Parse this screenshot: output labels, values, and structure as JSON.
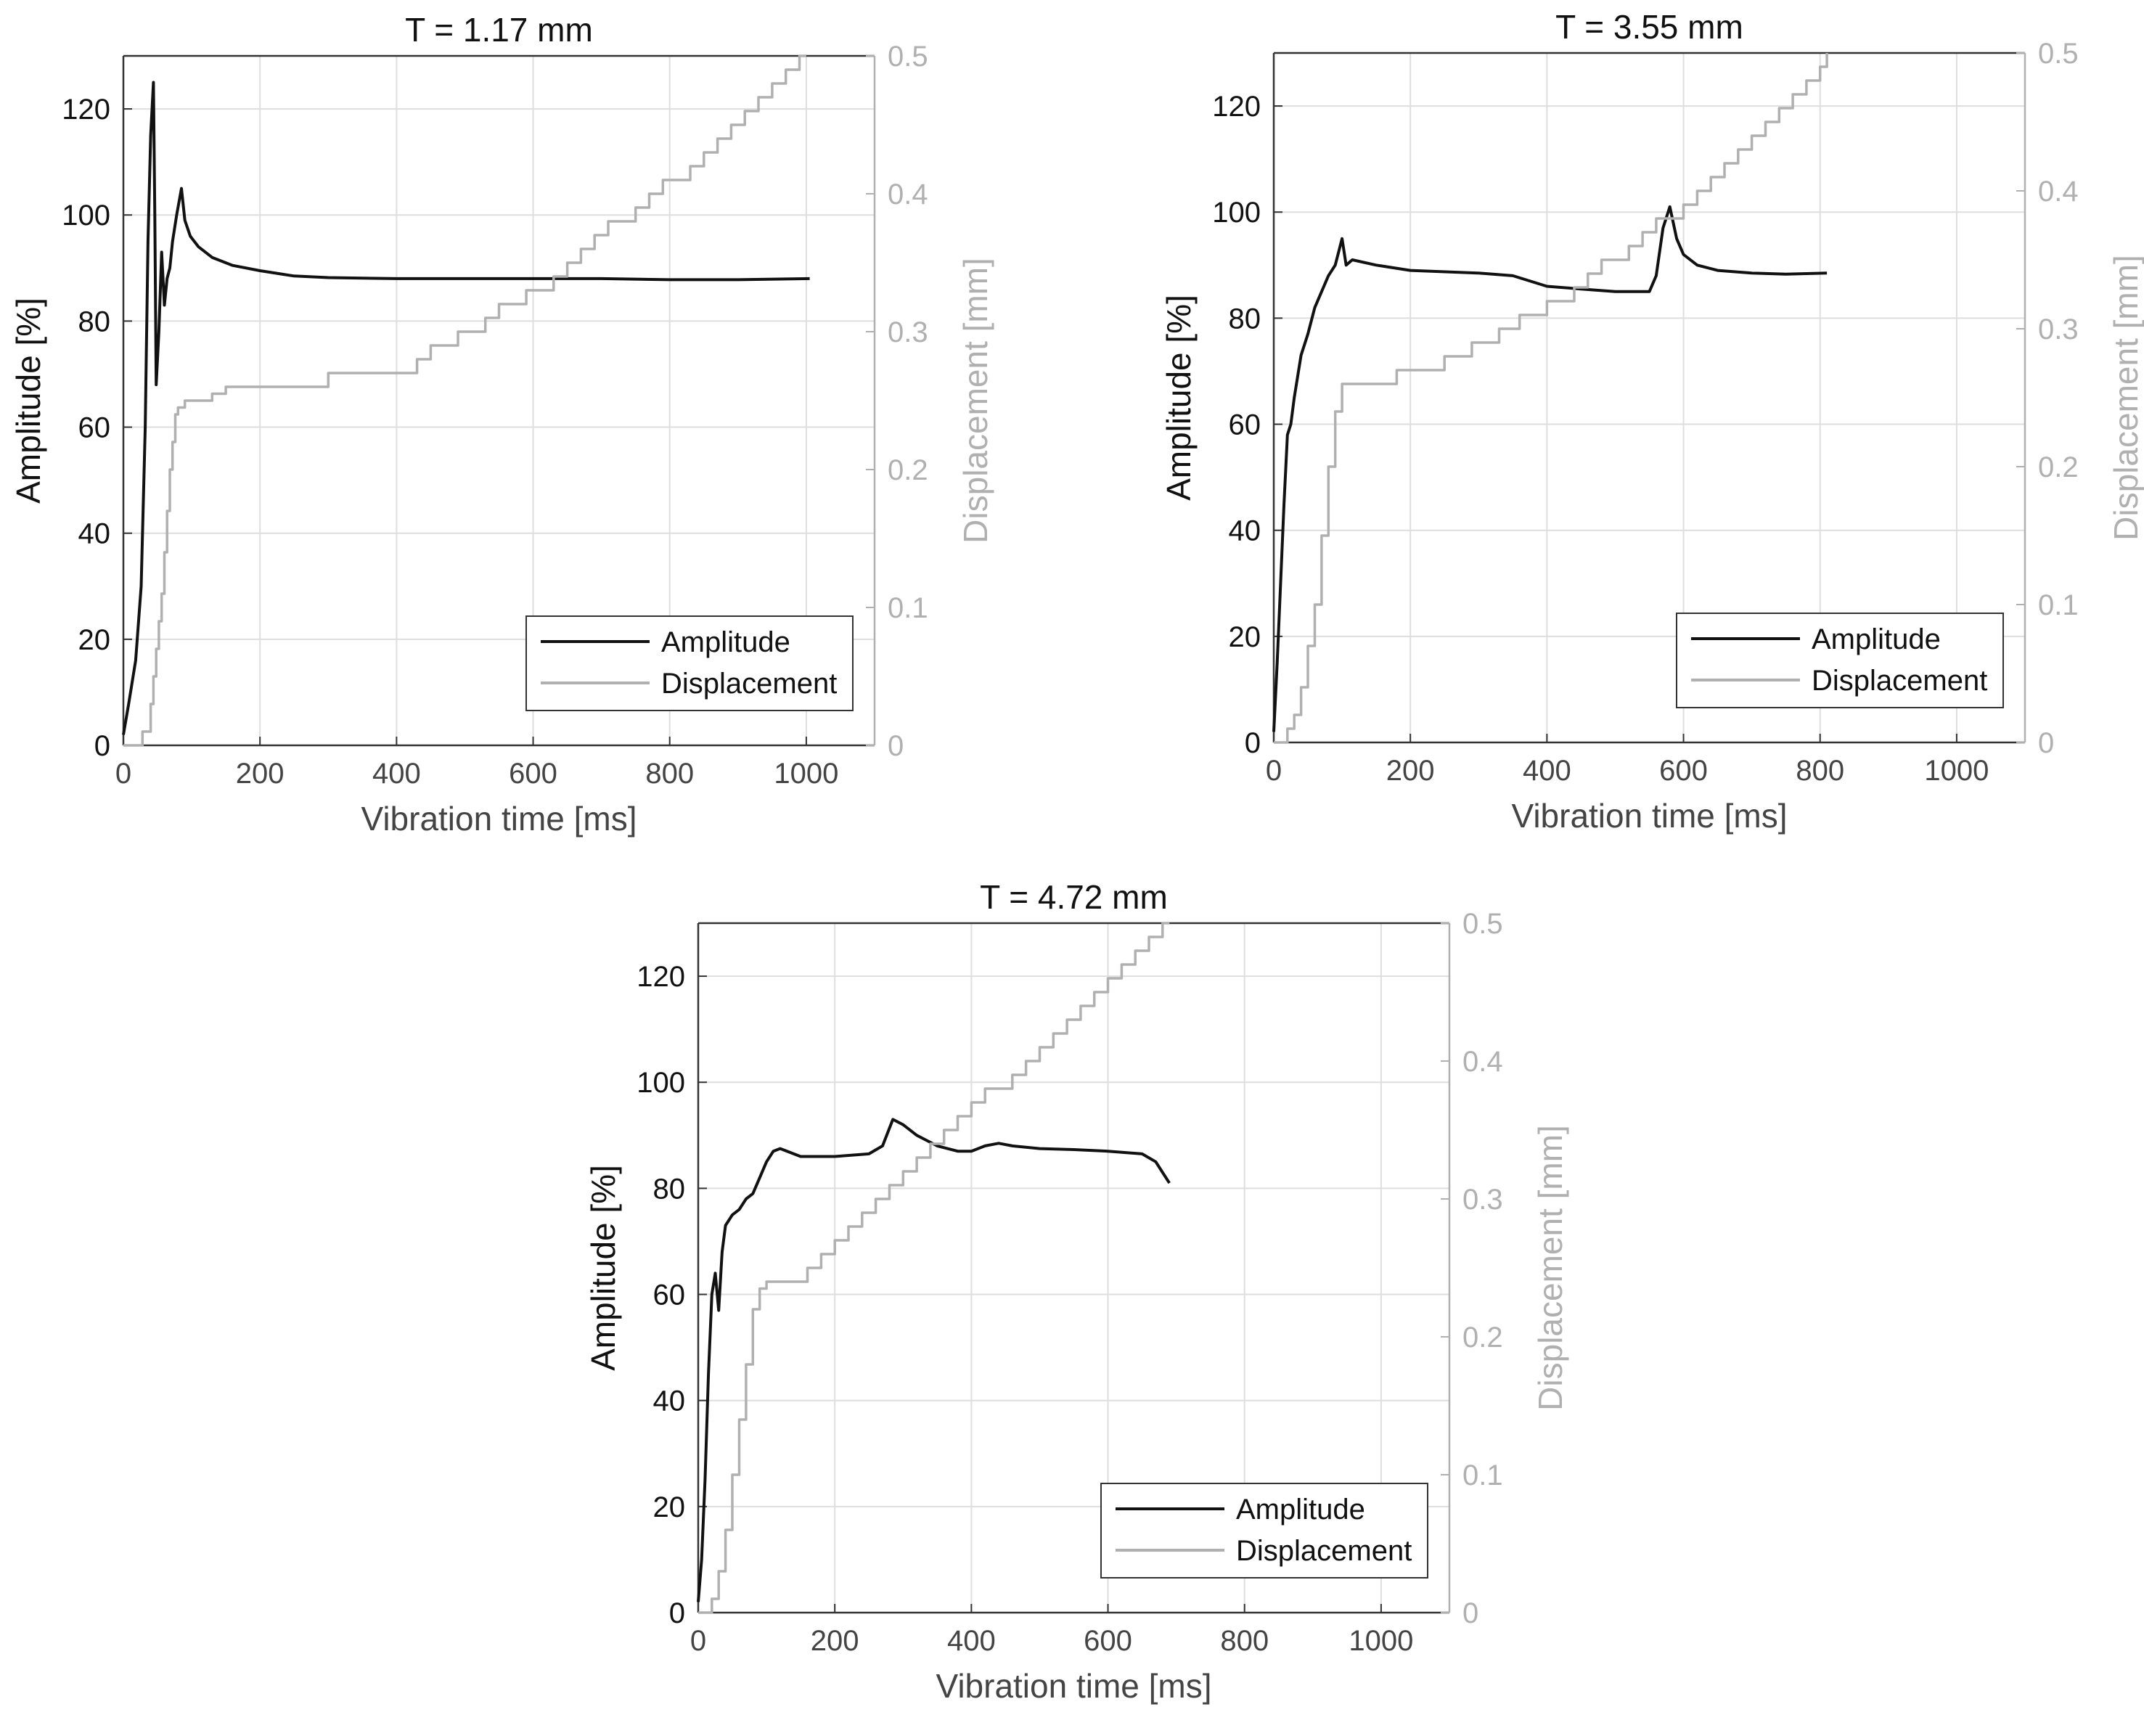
{
  "colors": {
    "amplitude": "#111111",
    "displacement": "#b0b0b0",
    "grid": "#dedede",
    "axis": "#333333"
  },
  "chart_data": [
    {
      "type": "line",
      "title": "T = 1.17 mm",
      "xlabel": "Vibration time [ms]",
      "ylabel": "Amplitude [%]",
      "y2label": "Displacement [mm]",
      "xlim": [
        0,
        1100
      ],
      "ylim": [
        0,
        130
      ],
      "y2lim": [
        0,
        0.5
      ],
      "xticks": [
        "0",
        "200",
        "400",
        "600",
        "800",
        "1000"
      ],
      "yticks": [
        "0",
        "20",
        "40",
        "60",
        "80",
        "100",
        "120"
      ],
      "y2ticks": [
        "0",
        "0.1",
        "0.2",
        "0.3",
        "0.4",
        "0.5"
      ],
      "legend": {
        "position": "bottom-right",
        "entries": [
          "Amplitude",
          "Displacement"
        ]
      },
      "grid": true,
      "series": [
        {
          "name": "Amplitude",
          "axis": "left",
          "x": [
            0,
            8,
            18,
            26,
            32,
            36,
            40,
            44,
            46,
            48,
            52,
            56,
            60,
            64,
            68,
            72,
            78,
            85,
            90,
            98,
            110,
            130,
            160,
            200,
            250,
            300,
            400,
            500,
            600,
            700,
            800,
            900,
            1005
          ],
          "y": [
            2,
            8,
            16,
            30,
            60,
            95,
            115,
            125,
            100,
            68,
            78,
            93,
            83,
            88,
            90,
            95,
            100,
            105,
            99,
            96,
            94,
            92,
            90.5,
            89.5,
            88.5,
            88.2,
            88,
            88,
            88,
            88,
            87.8,
            87.8,
            88
          ]
        },
        {
          "name": "Displacement",
          "axis": "right",
          "step": true,
          "x": [
            0,
            28,
            40,
            44,
            48,
            52,
            56,
            60,
            64,
            68,
            72,
            76,
            80,
            90,
            110,
            130,
            150,
            300,
            430,
            450,
            470,
            490,
            510,
            530,
            550,
            570,
            590,
            610,
            630,
            650,
            670,
            690,
            710,
            730,
            750,
            770,
            790,
            810,
            830,
            850,
            870,
            890,
            910,
            930,
            950,
            970,
            990,
            1000
          ],
          "y": [
            0,
            0.01,
            0.03,
            0.05,
            0.07,
            0.09,
            0.11,
            0.14,
            0.17,
            0.2,
            0.22,
            0.24,
            0.245,
            0.25,
            0.25,
            0.255,
            0.26,
            0.27,
            0.28,
            0.29,
            0.29,
            0.3,
            0.3,
            0.31,
            0.32,
            0.32,
            0.33,
            0.33,
            0.34,
            0.35,
            0.36,
            0.37,
            0.38,
            0.38,
            0.39,
            0.4,
            0.41,
            0.41,
            0.42,
            0.43,
            0.44,
            0.45,
            0.46,
            0.47,
            0.48,
            0.49,
            0.5,
            0.5
          ]
        }
      ]
    },
    {
      "type": "line",
      "title": "T = 3.55 mm",
      "xlabel": "Vibration time [ms]",
      "ylabel": "Amplitude [%]",
      "y2label": "Displacement [mm]",
      "xlim": [
        0,
        1100
      ],
      "ylim": [
        0,
        130
      ],
      "y2lim": [
        0,
        0.5
      ],
      "xticks": [
        "0",
        "200",
        "400",
        "600",
        "800",
        "1000"
      ],
      "yticks": [
        "0",
        "20",
        "40",
        "60",
        "80",
        "100",
        "120"
      ],
      "y2ticks": [
        "0",
        "0.1",
        "0.2",
        "0.3",
        "0.4",
        "0.5"
      ],
      "legend": {
        "position": "bottom-right",
        "entries": [
          "Amplitude",
          "Displacement"
        ]
      },
      "grid": true,
      "series": [
        {
          "name": "Amplitude",
          "axis": "left",
          "x": [
            0,
            5,
            10,
            15,
            20,
            25,
            30,
            40,
            50,
            60,
            70,
            80,
            90,
            100,
            106,
            115,
            150,
            200,
            300,
            350,
            400,
            450,
            500,
            550,
            560,
            570,
            580,
            590,
            600,
            620,
            650,
            700,
            750,
            810
          ],
          "y": [
            2,
            15,
            30,
            45,
            58,
            60,
            65,
            73,
            77,
            82,
            85,
            88,
            90,
            95,
            90,
            91,
            90,
            89,
            88.5,
            88,
            86,
            85.5,
            85,
            85,
            88,
            97,
            101,
            95,
            92,
            90,
            89,
            88.5,
            88.3,
            88.5
          ]
        },
        {
          "name": "Displacement",
          "axis": "right",
          "step": true,
          "x": [
            0,
            20,
            30,
            40,
            50,
            60,
            70,
            80,
            90,
            100,
            150,
            180,
            250,
            290,
            330,
            360,
            380,
            400,
            420,
            440,
            460,
            480,
            500,
            520,
            540,
            560,
            580,
            600,
            620,
            640,
            660,
            680,
            700,
            720,
            740,
            760,
            780,
            800,
            810
          ],
          "y": [
            0,
            0.01,
            0.02,
            0.04,
            0.07,
            0.1,
            0.15,
            0.2,
            0.24,
            0.26,
            0.26,
            0.27,
            0.28,
            0.29,
            0.3,
            0.31,
            0.31,
            0.32,
            0.32,
            0.33,
            0.34,
            0.35,
            0.35,
            0.36,
            0.37,
            0.38,
            0.38,
            0.39,
            0.4,
            0.41,
            0.42,
            0.43,
            0.44,
            0.45,
            0.46,
            0.47,
            0.48,
            0.49,
            0.5
          ]
        }
      ]
    },
    {
      "type": "line",
      "title": "T = 4.72 mm",
      "xlabel": "Vibration time [ms]",
      "ylabel": "Amplitude [%]",
      "y2label": "Displacement [mm]",
      "xlim": [
        0,
        1100
      ],
      "ylim": [
        0,
        130
      ],
      "y2lim": [
        0,
        0.5
      ],
      "xticks": [
        "0",
        "200",
        "400",
        "600",
        "800",
        "1000"
      ],
      "yticks": [
        "0",
        "20",
        "40",
        "60",
        "80",
        "100",
        "120"
      ],
      "y2ticks": [
        "0",
        "0.1",
        "0.2",
        "0.3",
        "0.4",
        "0.5"
      ],
      "legend": {
        "position": "bottom-right",
        "entries": [
          "Amplitude",
          "Displacement"
        ]
      },
      "grid": true,
      "series": [
        {
          "name": "Amplitude",
          "axis": "left",
          "x": [
            0,
            5,
            10,
            15,
            20,
            25,
            30,
            35,
            40,
            50,
            60,
            70,
            80,
            90,
            100,
            110,
            120,
            150,
            200,
            250,
            270,
            285,
            300,
            320,
            350,
            380,
            400,
            420,
            440,
            460,
            500,
            550,
            600,
            650,
            670,
            680,
            690
          ],
          "y": [
            2,
            10,
            25,
            45,
            60,
            64,
            57,
            68,
            73,
            75,
            76,
            78,
            79,
            82,
            85,
            87,
            87.5,
            86,
            86,
            86.5,
            88,
            93,
            92,
            90,
            88,
            87,
            87,
            88,
            88.5,
            88,
            87.5,
            87.3,
            87,
            86.5,
            85,
            83,
            81
          ]
        },
        {
          "name": "Displacement",
          "axis": "right",
          "step": true,
          "x": [
            0,
            20,
            30,
            40,
            50,
            60,
            70,
            80,
            90,
            100,
            120,
            160,
            180,
            200,
            220,
            240,
            260,
            280,
            300,
            320,
            340,
            360,
            380,
            400,
            420,
            440,
            460,
            480,
            500,
            520,
            540,
            560,
            580,
            600,
            620,
            640,
            660,
            680,
            690
          ],
          "y": [
            0,
            0.01,
            0.03,
            0.06,
            0.1,
            0.14,
            0.18,
            0.22,
            0.235,
            0.24,
            0.24,
            0.25,
            0.26,
            0.27,
            0.28,
            0.29,
            0.3,
            0.31,
            0.32,
            0.33,
            0.34,
            0.35,
            0.36,
            0.37,
            0.38,
            0.38,
            0.39,
            0.4,
            0.41,
            0.42,
            0.43,
            0.44,
            0.45,
            0.46,
            0.47,
            0.48,
            0.49,
            0.5,
            0.5
          ]
        }
      ]
    }
  ]
}
